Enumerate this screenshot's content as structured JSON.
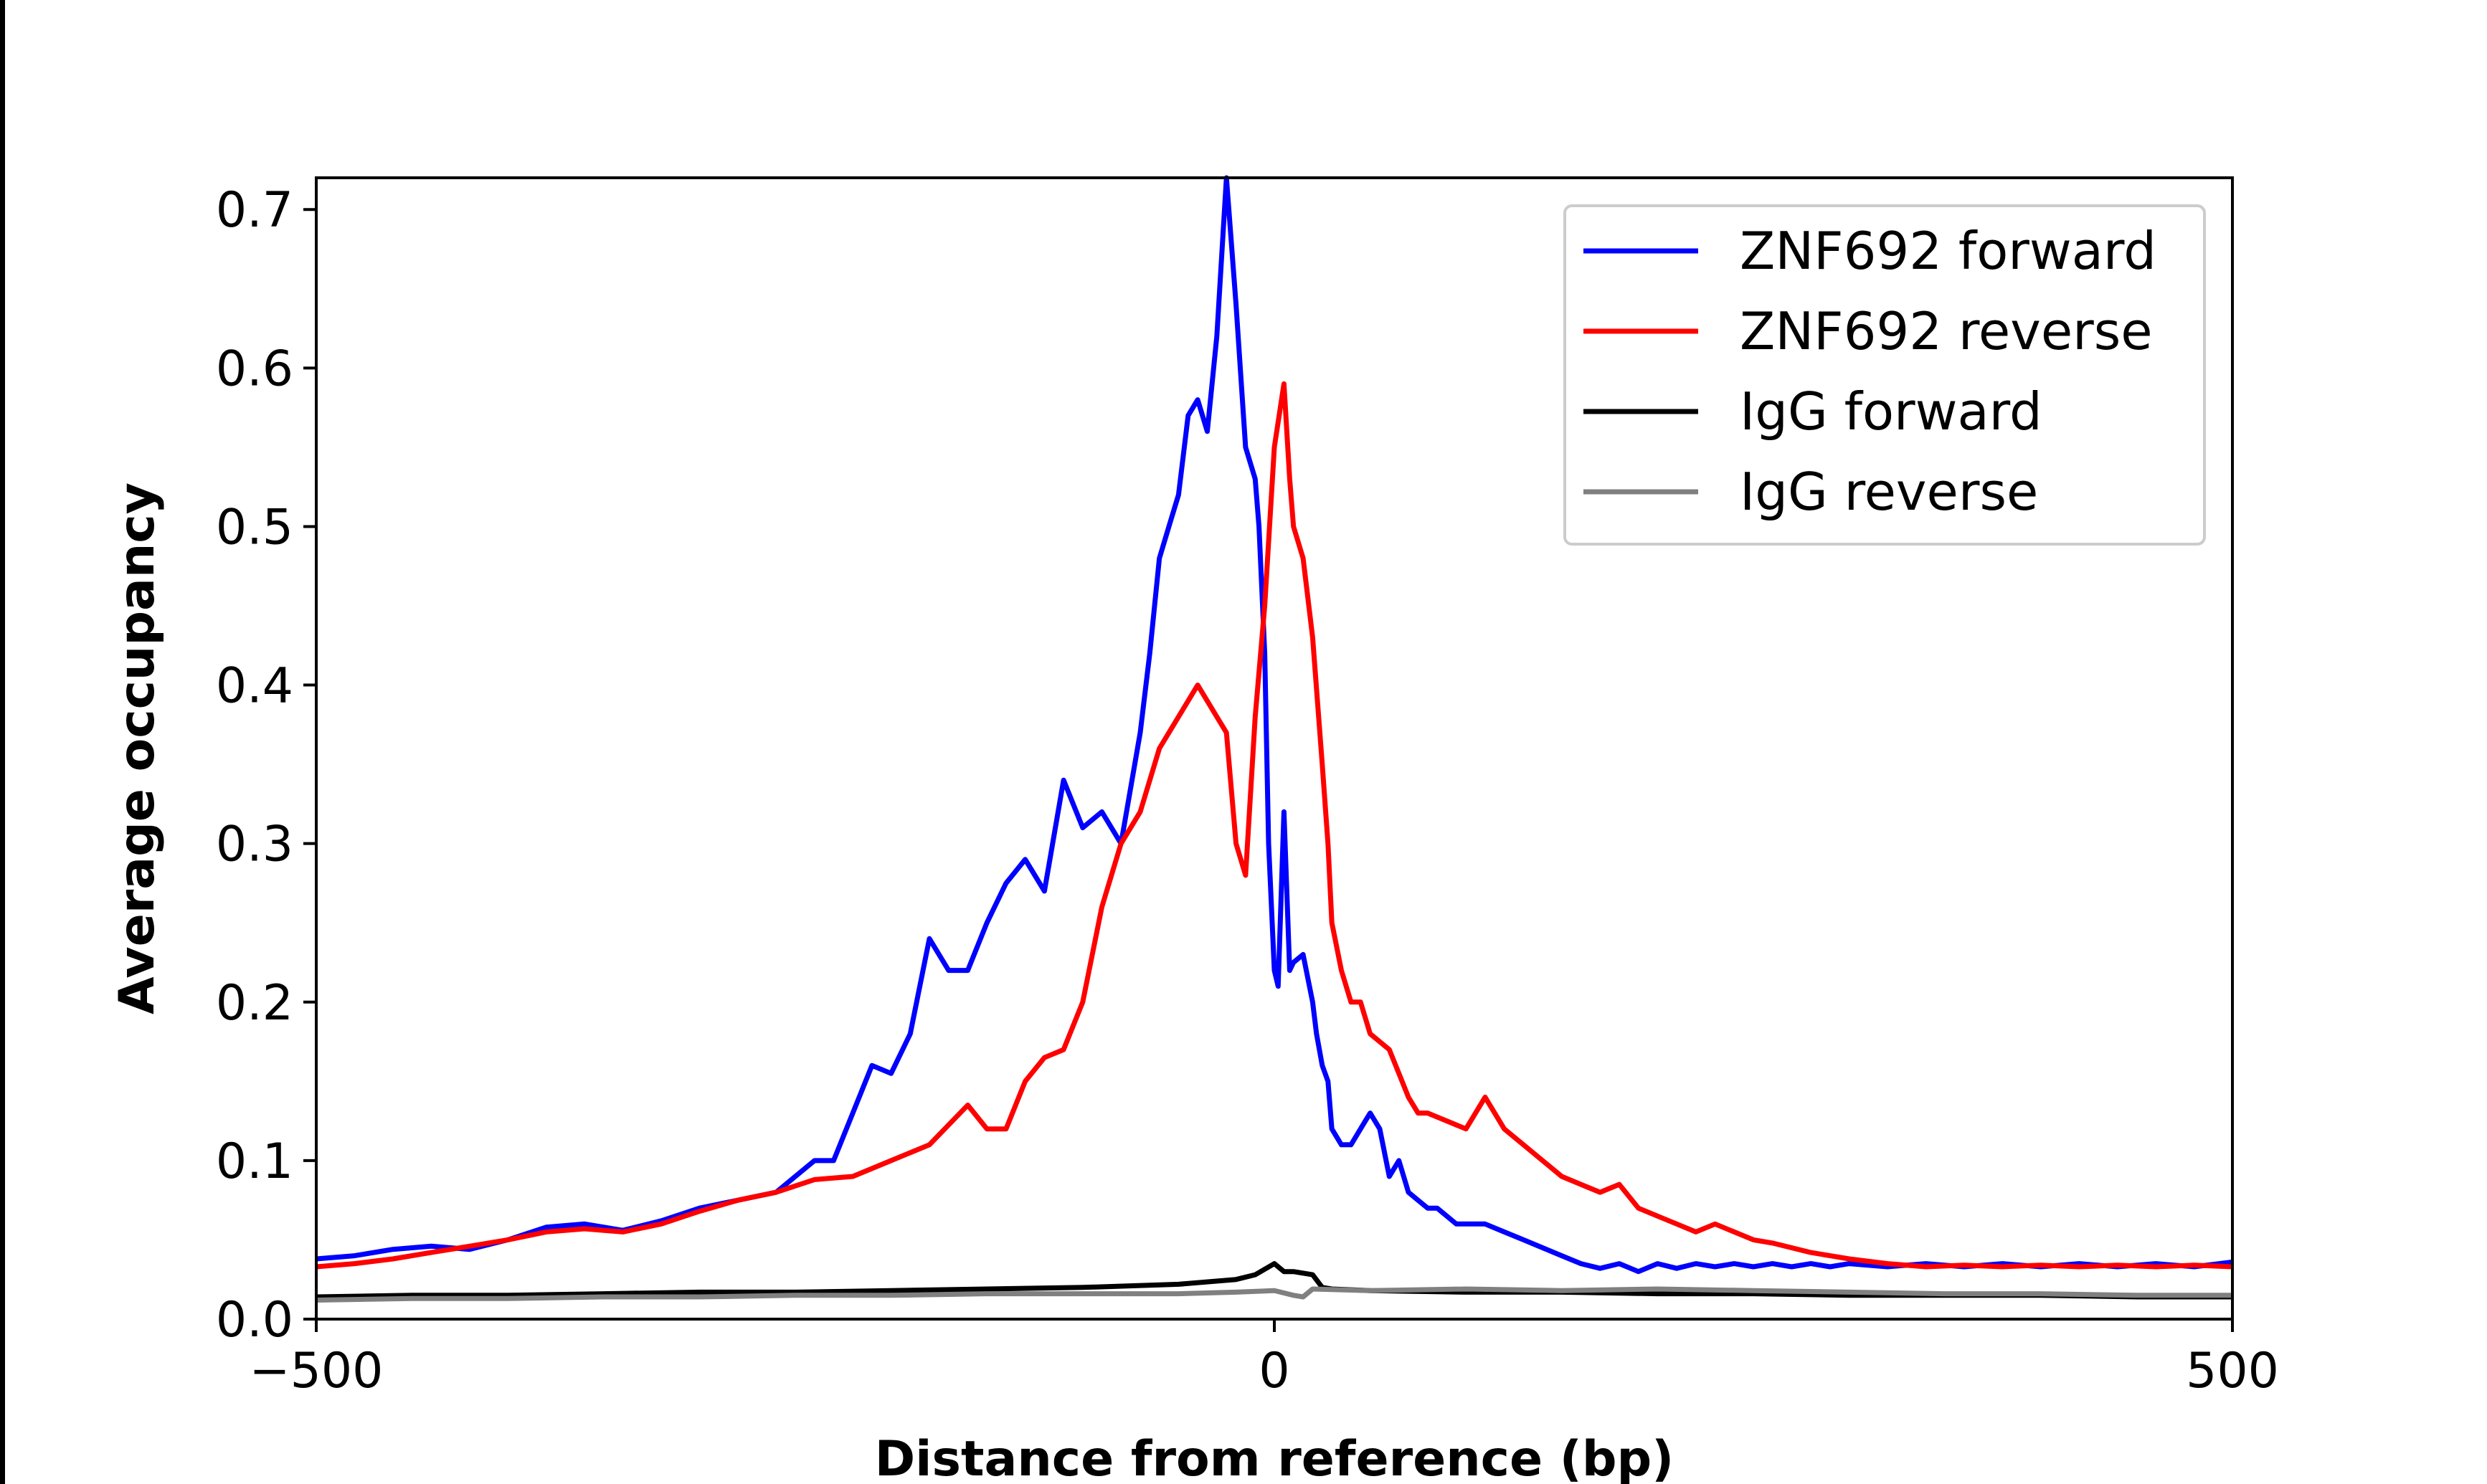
{
  "chart_data": {
    "type": "line",
    "xlabel": "Distance from reference (bp)",
    "ylabel": "Average occupancy",
    "xlim": [
      -500,
      500
    ],
    "ylim": [
      0,
      0.72
    ],
    "xticks": [
      -500,
      0,
      500
    ],
    "xtick_labels": [
      "−500",
      "0",
      "500"
    ],
    "yticks": [
      0.0,
      0.1,
      0.2,
      0.3,
      0.4,
      0.5,
      0.6,
      0.7
    ],
    "ytick_labels": [
      "0.0",
      "0.1",
      "0.2",
      "0.3",
      "0.4",
      "0.5",
      "0.6",
      "0.7"
    ],
    "grid": false,
    "legend_position": "top-right",
    "series": [
      {
        "name": "ZNF692 forward",
        "color": "#0000ff",
        "x": [
          -500,
          -480,
          -460,
          -440,
          -420,
          -400,
          -380,
          -360,
          -340,
          -320,
          -300,
          -280,
          -260,
          -240,
          -230,
          -220,
          -210,
          -200,
          -190,
          -180,
          -170,
          -160,
          -150,
          -140,
          -130,
          -120,
          -110,
          -100,
          -90,
          -80,
          -70,
          -65,
          -60,
          -55,
          -50,
          -45,
          -40,
          -35,
          -30,
          -25,
          -20,
          -15,
          -10,
          -8,
          -5,
          -3,
          0,
          2,
          5,
          8,
          10,
          15,
          20,
          22,
          25,
          28,
          30,
          35,
          40,
          45,
          50,
          55,
          60,
          65,
          70,
          75,
          80,
          85,
          90,
          95,
          100,
          110,
          120,
          130,
          140,
          150,
          160,
          170,
          180,
          190,
          200,
          210,
          220,
          230,
          240,
          250,
          260,
          270,
          280,
          290,
          300,
          320,
          340,
          360,
          380,
          400,
          420,
          440,
          460,
          480,
          500
        ],
        "values": [
          0.038,
          0.04,
          0.044,
          0.046,
          0.044,
          0.05,
          0.058,
          0.06,
          0.056,
          0.062,
          0.07,
          0.075,
          0.08,
          0.1,
          0.1,
          0.13,
          0.16,
          0.155,
          0.18,
          0.24,
          0.22,
          0.22,
          0.25,
          0.275,
          0.29,
          0.27,
          0.34,
          0.31,
          0.32,
          0.3,
          0.37,
          0.42,
          0.48,
          0.5,
          0.52,
          0.57,
          0.58,
          0.56,
          0.62,
          0.72,
          0.64,
          0.55,
          0.53,
          0.5,
          0.42,
          0.3,
          0.22,
          0.21,
          0.32,
          0.22,
          0.225,
          0.23,
          0.2,
          0.18,
          0.16,
          0.15,
          0.12,
          0.11,
          0.11,
          0.12,
          0.13,
          0.12,
          0.09,
          0.1,
          0.08,
          0.075,
          0.07,
          0.07,
          0.065,
          0.06,
          0.06,
          0.06,
          0.055,
          0.05,
          0.045,
          0.04,
          0.035,
          0.032,
          0.035,
          0.03,
          0.035,
          0.032,
          0.035,
          0.033,
          0.035,
          0.033,
          0.035,
          0.033,
          0.035,
          0.033,
          0.035,
          0.033,
          0.035,
          0.033,
          0.035,
          0.033,
          0.035,
          0.033,
          0.035,
          0.033,
          0.036
        ]
      },
      {
        "name": "ZNF692 reverse",
        "color": "#ff0000",
        "x": [
          -500,
          -480,
          -460,
          -440,
          -420,
          -400,
          -380,
          -360,
          -340,
          -320,
          -300,
          -280,
          -260,
          -240,
          -220,
          -200,
          -180,
          -160,
          -150,
          -140,
          -130,
          -120,
          -110,
          -100,
          -90,
          -80,
          -70,
          -60,
          -50,
          -40,
          -30,
          -25,
          -20,
          -15,
          -10,
          -5,
          0,
          5,
          8,
          10,
          15,
          20,
          25,
          28,
          30,
          35,
          40,
          45,
          50,
          55,
          60,
          65,
          70,
          75,
          80,
          90,
          100,
          110,
          120,
          130,
          140,
          150,
          160,
          170,
          180,
          190,
          200,
          210,
          220,
          230,
          240,
          250,
          260,
          270,
          280,
          290,
          300,
          320,
          340,
          360,
          380,
          400,
          420,
          440,
          460,
          480,
          500
        ],
        "values": [
          0.033,
          0.035,
          0.038,
          0.042,
          0.046,
          0.05,
          0.055,
          0.057,
          0.055,
          0.06,
          0.068,
          0.075,
          0.08,
          0.088,
          0.09,
          0.1,
          0.11,
          0.135,
          0.12,
          0.12,
          0.15,
          0.165,
          0.17,
          0.2,
          0.26,
          0.3,
          0.32,
          0.36,
          0.38,
          0.4,
          0.38,
          0.37,
          0.3,
          0.28,
          0.38,
          0.45,
          0.55,
          0.59,
          0.53,
          0.5,
          0.48,
          0.43,
          0.35,
          0.3,
          0.25,
          0.22,
          0.2,
          0.2,
          0.18,
          0.175,
          0.17,
          0.155,
          0.14,
          0.13,
          0.13,
          0.125,
          0.12,
          0.14,
          0.12,
          0.11,
          0.1,
          0.09,
          0.085,
          0.08,
          0.085,
          0.07,
          0.065,
          0.06,
          0.055,
          0.06,
          0.055,
          0.05,
          0.048,
          0.045,
          0.042,
          0.04,
          0.038,
          0.035,
          0.033,
          0.034,
          0.033,
          0.034,
          0.033,
          0.034,
          0.033,
          0.034,
          0.033
        ]
      },
      {
        "name": "IgG forward",
        "color": "#000000",
        "x": [
          -500,
          -450,
          -400,
          -350,
          -300,
          -250,
          -200,
          -150,
          -100,
          -50,
          -20,
          -10,
          0,
          5,
          10,
          20,
          25,
          30,
          50,
          100,
          150,
          200,
          250,
          300,
          350,
          400,
          450,
          500
        ],
        "values": [
          0.014,
          0.015,
          0.015,
          0.016,
          0.017,
          0.017,
          0.018,
          0.019,
          0.02,
          0.022,
          0.025,
          0.028,
          0.035,
          0.03,
          0.03,
          0.028,
          0.02,
          0.019,
          0.018,
          0.017,
          0.017,
          0.016,
          0.016,
          0.015,
          0.015,
          0.015,
          0.014,
          0.014
        ]
      },
      {
        "name": "IgG reverse",
        "color": "#808080",
        "x": [
          -500,
          -450,
          -400,
          -350,
          -300,
          -250,
          -200,
          -150,
          -100,
          -50,
          -20,
          0,
          10,
          15,
          20,
          50,
          100,
          150,
          200,
          250,
          300,
          350,
          400,
          450,
          500
        ],
        "values": [
          0.012,
          0.013,
          0.013,
          0.014,
          0.014,
          0.015,
          0.015,
          0.016,
          0.016,
          0.016,
          0.017,
          0.018,
          0.015,
          0.014,
          0.019,
          0.018,
          0.019,
          0.018,
          0.019,
          0.018,
          0.017,
          0.016,
          0.016,
          0.015,
          0.015
        ]
      }
    ]
  }
}
